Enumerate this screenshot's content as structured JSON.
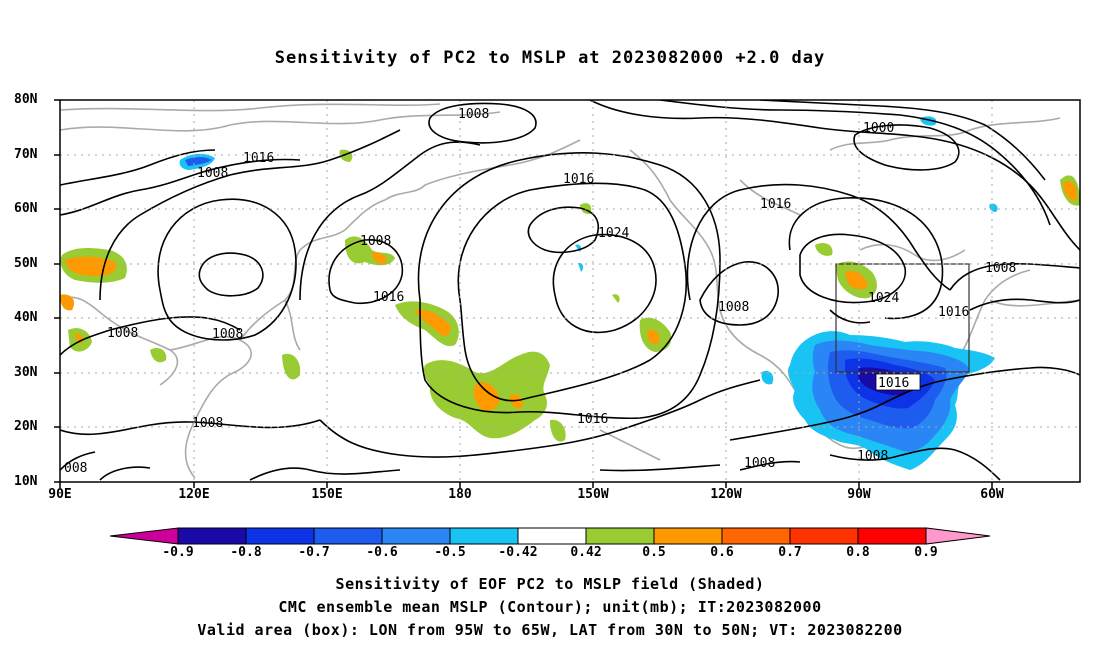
{
  "title": "Sensitivity of PC2 to MSLP at 2023082000 +2.0 day",
  "lat_labels": [
    "80N",
    "70N",
    "60N",
    "50N",
    "40N",
    "30N",
    "20N",
    "10N"
  ],
  "lon_labels": [
    "90E",
    "120E",
    "150E",
    "180",
    "150W",
    "120W",
    "90W",
    "60W"
  ],
  "contour_labels": {
    "c1008_top": "1008",
    "c1016_a": "1016",
    "c1008_b": "1008",
    "c1000": "1000",
    "c1016_c": "1016",
    "c1016_d": "1016",
    "c1024_a": "1024",
    "c1008_c": "1008",
    "c1008_d": "1008",
    "c1008_e": "1008",
    "c1016_e": "1016",
    "c1008_f": "1008",
    "c1024_b": "1024",
    "c1016_f": "1016",
    "c1016_g": "1016",
    "c1008_g": "1008",
    "c1008_h": "1008",
    "c1016_h": "1016",
    "c1008_i": "1008",
    "c1008_j": "1008",
    "c008": "008"
  },
  "colorbar": {
    "labels": [
      "-0.9",
      "-0.8",
      "-0.7",
      "-0.6",
      "-0.5",
      "-0.42",
      "0.42",
      "0.5",
      "0.6",
      "0.7",
      "0.8",
      "0.9"
    ],
    "colors": [
      "#1a0aa8",
      "#0d33e6",
      "#1e5cf0",
      "#2a86f5",
      "#19c4f5",
      "#ffffff",
      "#99cc33",
      "#ff9900",
      "#ff6600",
      "#ff3300",
      "#ff0000"
    ],
    "low_arrow_color": "#cc0099",
    "high_arrow_color": "#ff99cc"
  },
  "captions": {
    "line1": "Sensitivity of EOF PC2 to MSLP field (Shaded)",
    "line2": "CMC ensemble mean MSLP (Contour); unit(mb); IT:2023082000",
    "line3": "Valid area (box): LON from 95W to 65W, LAT from 30N to 50N; VT: 2023082200"
  },
  "valid_box": {
    "lon_from": "95W",
    "lon_to": "65W",
    "lat_from": "30N",
    "lat_to": "50N"
  }
}
